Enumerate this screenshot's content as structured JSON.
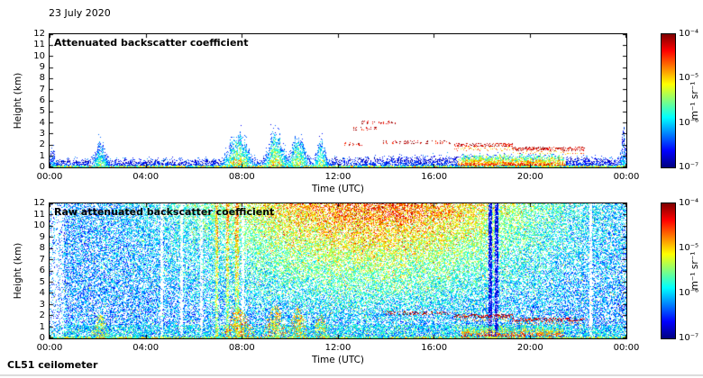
{
  "header": {
    "date": "23 July 2020"
  },
  "footer": {
    "instrument": "CL51 ceilometer"
  },
  "colors": {
    "axis": "#000000",
    "background": "#ffffff"
  },
  "chart_data": [
    {
      "type": "heatmap",
      "title": "Attenuated backscatter coefficient",
      "xlabel": "Time (UTC)",
      "ylabel": "Height (km)",
      "x_tick_labels": [
        "00:00",
        "04:00",
        "08:00",
        "12:00",
        "16:00",
        "20:00",
        "00:00"
      ],
      "x_range_hours": [
        0,
        24
      ],
      "y_ticks_km": [
        0,
        1,
        2,
        3,
        4,
        5,
        6,
        7,
        8,
        9,
        10,
        11,
        12
      ],
      "ylim_km": [
        0,
        12
      ],
      "grid": false,
      "colorbar": {
        "unit_label": "m⁻¹ sr⁻¹",
        "tick_labels": [
          "10⁻⁴",
          "10⁻⁵",
          "10⁻⁶",
          "10⁻⁷"
        ],
        "max_exp": -4,
        "min_exp": -7,
        "colormap": "jet",
        "colormap_stops": [
          "#00007f",
          "#0000ff",
          "#00ffff",
          "#ffff00",
          "#ff0000",
          "#7f0000"
        ]
      },
      "features": {
        "boundary_layer_base_km": 0.45,
        "aerosol_plumes": [
          {
            "hour": 0.1,
            "top_km": 1.5,
            "width_h": 0.1,
            "strength": 0.15
          },
          {
            "hour": 2.1,
            "top_km": 2.1,
            "width_h": 0.22,
            "strength": 0.4
          },
          {
            "hour": 7.85,
            "top_km": 2.6,
            "width_h": 0.4,
            "strength": 0.6
          },
          {
            "hour": 9.4,
            "top_km": 2.9,
            "width_h": 0.3,
            "strength": 0.55
          },
          {
            "hour": 10.35,
            "top_km": 2.6,
            "width_h": 0.28,
            "strength": 0.5
          },
          {
            "hour": 11.3,
            "top_km": 2.0,
            "width_h": 0.2,
            "strength": 0.45
          },
          {
            "hour": 23.9,
            "top_km": 3.1,
            "width_h": 0.09,
            "strength": 0.15
          }
        ],
        "cloud_layers": [
          {
            "start_h": 12.3,
            "end_h": 13.0,
            "base_km": 2.0,
            "gappy": true
          },
          {
            "start_h": 12.6,
            "end_h": 13.6,
            "base_km": 3.4,
            "gappy": true
          },
          {
            "start_h": 13.0,
            "end_h": 14.4,
            "base_km": 3.95,
            "gappy": true
          },
          {
            "start_h": 13.9,
            "end_h": 16.7,
            "base_km": 2.15,
            "gappy": true
          },
          {
            "start_h": 16.9,
            "end_h": 19.3,
            "base_km": 1.9,
            "gappy": false
          },
          {
            "start_h": 19.3,
            "end_h": 22.3,
            "base_km": 1.55,
            "gappy": false
          }
        ],
        "surface_enhancement": {
          "start_h": 17.2,
          "end_h": 21.4,
          "top_km": 0.95
        }
      }
    },
    {
      "type": "heatmap",
      "title": "Raw attenuated backscatter coefficient",
      "xlabel": "Time (UTC)",
      "ylabel": "Height (km)",
      "x_tick_labels": [
        "00:00",
        "04:00",
        "08:00",
        "12:00",
        "16:00",
        "20:00",
        "00:00"
      ],
      "x_range_hours": [
        0,
        24
      ],
      "y_ticks_km": [
        0,
        1,
        2,
        3,
        4,
        5,
        6,
        7,
        8,
        9,
        10,
        11,
        12
      ],
      "ylim_km": [
        0,
        12
      ],
      "grid": false,
      "colorbar": {
        "unit_label": "m⁻¹ sr⁻¹",
        "tick_labels": [
          "10⁻⁴",
          "10⁻⁵",
          "10⁻⁶",
          "10⁻⁷"
        ],
        "max_exp": -4,
        "min_exp": -7,
        "colormap": "jet",
        "colormap_stops": [
          "#00007f",
          "#0000ff",
          "#00ffff",
          "#ffff00",
          "#ff0000",
          "#7f0000"
        ]
      },
      "features": {
        "noise_field": {
          "daytime_peak_hour": 13.5,
          "daytime_width_h": 5.0,
          "strength": 0.55
        },
        "sparse_left_edge_end_h": 0.6,
        "pale_stripes_h": [
          4.65,
          5.5,
          6.3,
          8.05,
          22.55
        ],
        "green_stripes_h": [
          6.95,
          7.4,
          7.8
        ],
        "dark_blue_stripes_h": [
          18.35,
          18.6
        ],
        "aerosol_plumes": [
          {
            "hour": 2.1,
            "top_km": 2.1,
            "width_h": 0.22,
            "strength": 0.4
          },
          {
            "hour": 7.85,
            "top_km": 2.6,
            "width_h": 0.4,
            "strength": 0.6
          },
          {
            "hour": 9.4,
            "top_km": 2.9,
            "width_h": 0.3,
            "strength": 0.55
          },
          {
            "hour": 10.35,
            "top_km": 2.6,
            "width_h": 0.28,
            "strength": 0.5
          },
          {
            "hour": 11.3,
            "top_km": 2.0,
            "width_h": 0.2,
            "strength": 0.45
          }
        ],
        "cloud_layers": [
          {
            "start_h": 13.9,
            "end_h": 16.7,
            "base_km": 2.15,
            "gappy": true
          },
          {
            "start_h": 16.9,
            "end_h": 19.3,
            "base_km": 1.9,
            "gappy": false
          },
          {
            "start_h": 19.3,
            "end_h": 22.3,
            "base_km": 1.55,
            "gappy": false
          }
        ],
        "surface_enhancement": {
          "start_h": 17.2,
          "end_h": 21.4,
          "top_km": 0.95
        }
      }
    }
  ]
}
